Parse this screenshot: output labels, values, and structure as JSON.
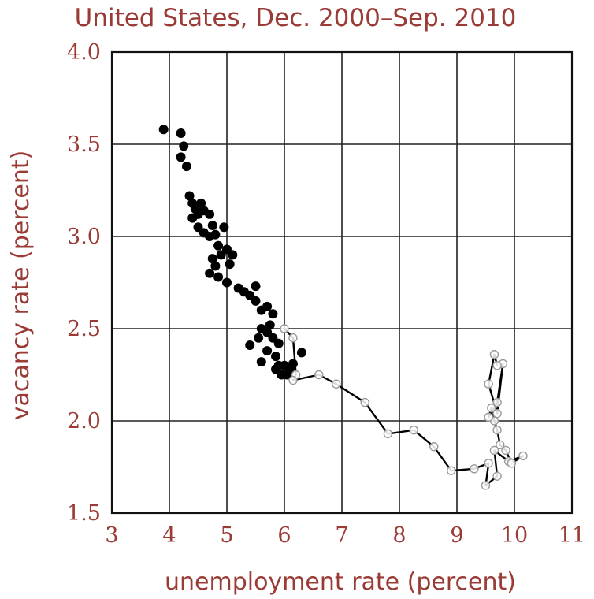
{
  "chart_data": {
    "type": "scatter",
    "title": "United States, Dec. 2000–Sep. 2010",
    "xlabel": "unemployment rate (percent)",
    "ylabel": "vacancy rate (percent)",
    "xlim": [
      3,
      11
    ],
    "ylim": [
      1.5,
      4.0
    ],
    "xticks": [
      "3",
      "4",
      "5",
      "6",
      "7",
      "8",
      "9",
      "10",
      "11"
    ],
    "yticks": [
      "1.5",
      "2.0",
      "2.5",
      "3.0",
      "3.5",
      "4.0"
    ],
    "grid": true,
    "series": [
      {
        "style": "filled-dots",
        "color": "#000000",
        "points": [
          [
            3.9,
            3.58
          ],
          [
            4.2,
            3.56
          ],
          [
            4.25,
            3.49
          ],
          [
            4.2,
            3.43
          ],
          [
            4.3,
            3.38
          ],
          [
            4.35,
            3.22
          ],
          [
            4.4,
            3.18
          ],
          [
            4.45,
            3.15
          ],
          [
            4.5,
            3.12
          ],
          [
            4.55,
            3.18
          ],
          [
            4.6,
            3.14
          ],
          [
            4.7,
            3.12
          ],
          [
            4.75,
            3.06
          ],
          [
            4.4,
            3.1
          ],
          [
            4.5,
            3.05
          ],
          [
            4.6,
            3.02
          ],
          [
            4.7,
            3.0
          ],
          [
            4.8,
            3.01
          ],
          [
            4.85,
            2.95
          ],
          [
            4.95,
            3.05
          ],
          [
            5.0,
            2.93
          ],
          [
            4.9,
            2.9
          ],
          [
            4.75,
            2.88
          ],
          [
            4.8,
            2.84
          ],
          [
            4.7,
            2.8
          ],
          [
            4.85,
            2.78
          ],
          [
            5.05,
            2.85
          ],
          [
            5.1,
            2.9
          ],
          [
            5.0,
            2.75
          ],
          [
            5.2,
            2.72
          ],
          [
            5.3,
            2.7
          ],
          [
            5.4,
            2.68
          ],
          [
            5.5,
            2.73
          ],
          [
            5.5,
            2.65
          ],
          [
            5.6,
            2.6
          ],
          [
            5.7,
            2.62
          ],
          [
            5.8,
            2.58
          ],
          [
            5.75,
            2.52
          ],
          [
            5.6,
            2.5
          ],
          [
            5.55,
            2.45
          ],
          [
            5.7,
            2.48
          ],
          [
            5.8,
            2.45
          ],
          [
            5.9,
            2.42
          ],
          [
            5.7,
            2.38
          ],
          [
            5.85,
            2.35
          ],
          [
            5.9,
            2.3
          ],
          [
            6.0,
            2.3
          ],
          [
            6.05,
            2.25
          ],
          [
            5.95,
            2.25
          ],
          [
            6.1,
            2.28
          ],
          [
            6.3,
            2.37
          ],
          [
            5.4,
            2.41
          ],
          [
            5.6,
            2.32
          ],
          [
            5.85,
            2.28
          ],
          [
            6.15,
            2.31
          ]
        ]
      },
      {
        "style": "connected-open-circles",
        "color": "#000000",
        "points": [
          [
            6.0,
            2.5
          ],
          [
            6.15,
            2.45
          ],
          [
            6.2,
            2.25
          ],
          [
            6.15,
            2.22
          ],
          [
            6.6,
            2.25
          ],
          [
            6.9,
            2.2
          ],
          [
            7.4,
            2.1
          ],
          [
            7.8,
            1.93
          ],
          [
            8.25,
            1.95
          ],
          [
            8.6,
            1.86
          ],
          [
            8.9,
            1.73
          ],
          [
            9.3,
            1.74
          ],
          [
            9.55,
            1.77
          ],
          [
            9.5,
            1.65
          ],
          [
            9.7,
            1.7
          ],
          [
            9.65,
            1.84
          ],
          [
            9.9,
            1.78
          ],
          [
            10.15,
            1.81
          ],
          [
            9.95,
            1.77
          ],
          [
            9.85,
            1.84
          ],
          [
            9.75,
            1.87
          ],
          [
            9.7,
            1.95
          ],
          [
            9.65,
            2.0
          ],
          [
            9.6,
            2.07
          ],
          [
            9.55,
            2.02
          ],
          [
            9.7,
            2.1
          ],
          [
            9.8,
            2.31
          ],
          [
            9.7,
            2.04
          ],
          [
            9.55,
            2.2
          ],
          [
            9.65,
            2.36
          ],
          [
            9.7,
            2.3
          ]
        ]
      }
    ]
  }
}
